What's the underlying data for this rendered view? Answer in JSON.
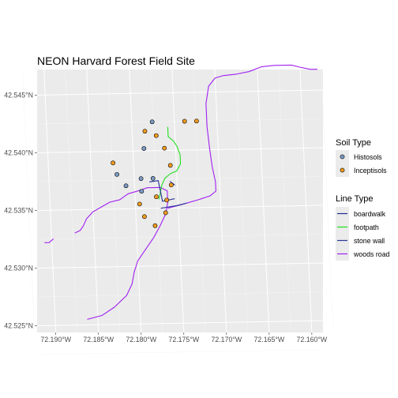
{
  "chart_data": {
    "type": "map",
    "title": "NEON Harvard Forest Field Site",
    "x_range": [
      -72.1915,
      -72.158
    ],
    "y_range": [
      42.5242,
      42.547
    ],
    "x_ticks": [
      -72.19,
      -72.185,
      -72.18,
      -72.175,
      -72.17,
      -72.165,
      -72.16
    ],
    "x_tick_labels": [
      "72.190°W",
      "72.185°W",
      "72.180°W",
      "72.175°W",
      "72.170°W",
      "72.165°W",
      "72.160°W"
    ],
    "y_ticks": [
      42.525,
      42.53,
      42.535,
      42.54,
      42.545
    ],
    "y_tick_labels": [
      "42.525°N",
      "42.530°N",
      "42.535°N",
      "42.540°N",
      "42.545°N"
    ],
    "grid": true,
    "legend_placement": "right",
    "soil_legend": {
      "title": "Soil Type",
      "items": [
        {
          "label": "Histosols",
          "color": "#7b9bc4"
        },
        {
          "label": "Inceptisols",
          "color": "#f39c1f"
        }
      ]
    },
    "line_legend": {
      "title": "Line Type",
      "items": [
        {
          "label": "boardwalk",
          "color": "#1f2c8f"
        },
        {
          "label": "footpath",
          "color": "#1fe01f"
        },
        {
          "label": "stone wall",
          "color": "#2b3899"
        },
        {
          "label": "woods road",
          "color": "#a020f0"
        }
      ]
    },
    "points": [
      {
        "soil": "Histosols",
        "x": -72.1776,
        "y": 42.5425
      },
      {
        "soil": "Histosols",
        "x": -72.1787,
        "y": 42.5402
      },
      {
        "soil": "Histosols",
        "x": -72.182,
        "y": 42.538
      },
      {
        "soil": "Histosols",
        "x": -72.1792,
        "y": 42.5376
      },
      {
        "soil": "Histosols",
        "x": -72.1778,
        "y": 42.5376
      },
      {
        "soil": "Histosols",
        "x": -72.181,
        "y": 42.537
      },
      {
        "soil": "Histosols",
        "x": -72.1792,
        "y": 42.5365
      },
      {
        "soil": "Inceptisols",
        "x": -72.1738,
        "y": 42.5425
      },
      {
        "soil": "Inceptisols",
        "x": -72.1724,
        "y": 42.5425
      },
      {
        "soil": "Inceptisols",
        "x": -72.1785,
        "y": 42.5417
      },
      {
        "soil": "Inceptisols",
        "x": -72.1772,
        "y": 42.5413
      },
      {
        "soil": "Inceptisols",
        "x": -72.1763,
        "y": 42.5402
      },
      {
        "soil": "Inceptisols",
        "x": -72.1824,
        "y": 42.539
      },
      {
        "soil": "Inceptisols",
        "x": -72.1757,
        "y": 42.5387
      },
      {
        "soil": "Inceptisols",
        "x": -72.1757,
        "y": 42.537
      },
      {
        "soil": "Inceptisols",
        "x": -72.1775,
        "y": 42.536
      },
      {
        "soil": "Inceptisols",
        "x": -72.1763,
        "y": 42.5357
      },
      {
        "soil": "Inceptisols",
        "x": -72.1795,
        "y": 42.5354
      },
      {
        "soil": "Inceptisols",
        "x": -72.1765,
        "y": 42.5346
      },
      {
        "soil": "Inceptisols",
        "x": -72.179,
        "y": 42.5343
      },
      {
        "soil": "Inceptisols",
        "x": -72.1778,
        "y": 42.5335
      }
    ],
    "lines": [
      {
        "type": "woods road",
        "coords": [
          [
            -72.1862,
            42.5255
          ],
          [
            -72.1845,
            42.5258
          ],
          [
            -72.183,
            42.5265
          ],
          [
            -72.1815,
            42.5275
          ],
          [
            -72.1808,
            42.5285
          ],
          [
            -72.1805,
            42.5295
          ],
          [
            -72.18,
            42.5305
          ],
          [
            -72.179,
            42.5315
          ],
          [
            -72.178,
            42.5325
          ],
          [
            -72.1772,
            42.5335
          ],
          [
            -72.1765,
            42.5345
          ],
          [
            -72.1762,
            42.5355
          ],
          [
            -72.1762,
            42.5365
          ],
          [
            -72.177,
            42.5368
          ],
          [
            -72.1785,
            42.5368
          ],
          [
            -72.1798,
            42.5365
          ],
          [
            -72.1808,
            42.5363
          ],
          [
            -72.1818,
            42.5358
          ],
          [
            -72.183,
            42.5356
          ],
          [
            -72.184,
            42.5352
          ],
          [
            -72.185,
            42.5348
          ],
          [
            -72.1858,
            42.5342
          ],
          [
            -72.1862,
            42.5336
          ],
          [
            -72.1866,
            42.5332
          ],
          [
            -72.1872,
            42.533
          ]
        ]
      },
      {
        "type": "woods road",
        "coords": [
          [
            -72.1762,
            42.535
          ],
          [
            -72.1745,
            42.5353
          ],
          [
            -72.1725,
            42.5357
          ],
          [
            -72.1712,
            42.536
          ],
          [
            -72.1705,
            42.5364
          ],
          [
            -72.1705,
            42.5372
          ],
          [
            -72.1708,
            42.5385
          ],
          [
            -72.171,
            42.54
          ],
          [
            -72.1712,
            42.542
          ],
          [
            -72.1712,
            42.544
          ],
          [
            -72.1708,
            42.5455
          ],
          [
            -72.17,
            42.5462
          ],
          [
            -72.169,
            42.5464
          ],
          [
            -72.1675,
            42.5465
          ],
          [
            -72.166,
            42.5467
          ],
          [
            -72.1645,
            42.5471
          ],
          [
            -72.163,
            42.5472
          ],
          [
            -72.161,
            42.5472
          ],
          [
            -72.16,
            42.547
          ],
          [
            -72.1588,
            42.5468
          ],
          [
            -72.158,
            42.5468
          ]
        ]
      },
      {
        "type": "woods road",
        "coords": [
          [
            -72.1908,
            42.5322
          ],
          [
            -72.1903,
            42.5322
          ],
          [
            -72.1898,
            42.5325
          ]
        ]
      },
      {
        "type": "footpath",
        "coords": [
          [
            -72.1758,
            42.542
          ],
          [
            -72.1758,
            42.5412
          ],
          [
            -72.1752,
            42.5408
          ],
          [
            -72.1748,
            42.5403
          ],
          [
            -72.1745,
            42.5396
          ],
          [
            -72.1745,
            42.5388
          ],
          [
            -72.175,
            42.5382
          ],
          [
            -72.1757,
            42.538
          ],
          [
            -72.1764,
            42.5376
          ],
          [
            -72.1768,
            42.537
          ],
          [
            -72.177,
            42.5364
          ],
          [
            -72.1772,
            42.5358
          ]
        ]
      },
      {
        "type": "boardwalk",
        "coords": [
          [
            -72.1782,
            42.5373
          ],
          [
            -72.1772,
            42.5374
          ],
          [
            -72.177,
            42.5365
          ],
          [
            -72.1768,
            42.5356
          ]
        ]
      },
      {
        "type": "stone wall",
        "coords": [
          [
            -72.1758,
            42.5373
          ],
          [
            -72.1753,
            42.537
          ]
        ]
      },
      {
        "type": "stone wall",
        "coords": [
          [
            -72.177,
            42.535
          ],
          [
            -72.1752,
            42.5352
          ],
          [
            -72.174,
            42.5354
          ]
        ]
      },
      {
        "type": "stone wall",
        "coords": [
          [
            -72.1768,
            42.5356
          ],
          [
            -72.1754,
            42.5358
          ]
        ]
      }
    ]
  }
}
